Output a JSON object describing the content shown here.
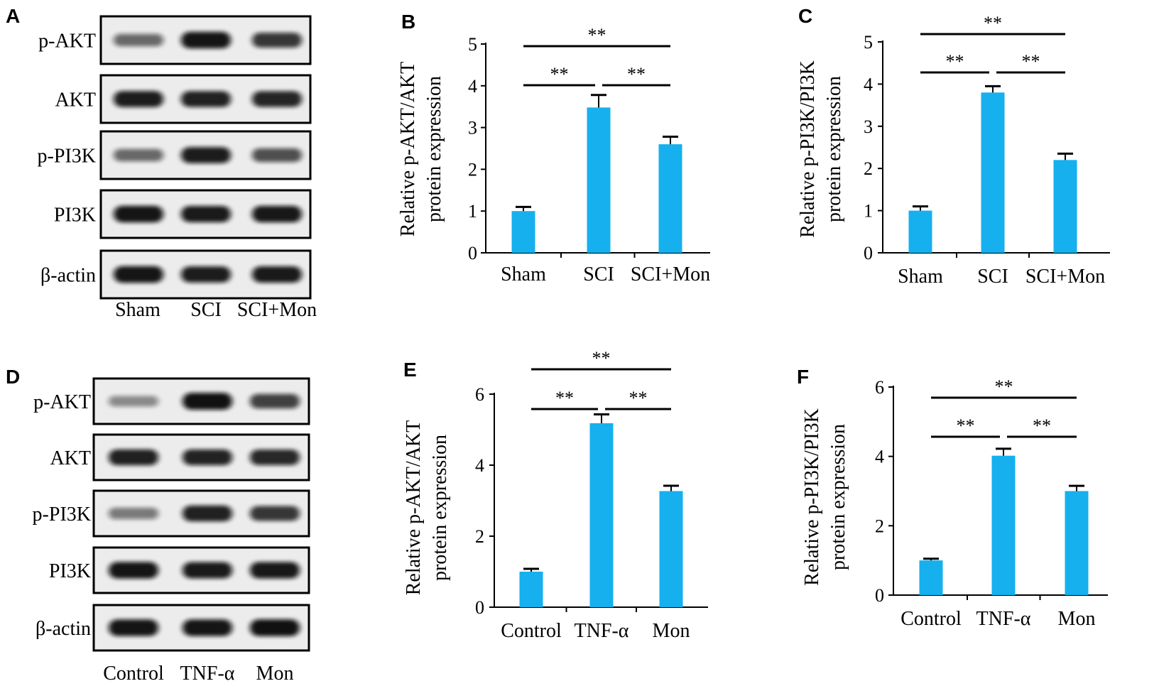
{
  "colors": {
    "bar": "#16b0ee",
    "axis": "#000000",
    "band": "#111111",
    "blot_bg": "#ececec"
  },
  "blots": [
    {
      "panel_letter": "A",
      "rows": [
        {
          "label": "p-AKT",
          "intensity": [
            0.45,
            0.95,
            0.75
          ]
        },
        {
          "label": "AKT",
          "intensity": [
            0.9,
            0.88,
            0.85
          ]
        },
        {
          "label": "p-PI3K",
          "intensity": [
            0.45,
            0.9,
            0.6
          ]
        },
        {
          "label": "PI3K",
          "intensity": [
            0.95,
            0.92,
            0.93
          ]
        },
        {
          "label": "β-actin",
          "intensity": [
            0.95,
            0.9,
            0.92
          ]
        }
      ],
      "lanes": [
        "Sham",
        "SCI",
        "SCI+Mon"
      ]
    },
    {
      "panel_letter": "D",
      "rows": [
        {
          "label": "p-AKT",
          "intensity": [
            0.25,
            0.98,
            0.7
          ]
        },
        {
          "label": "AKT",
          "intensity": [
            0.88,
            0.86,
            0.84
          ]
        },
        {
          "label": "p-PI3K",
          "intensity": [
            0.35,
            0.88,
            0.75
          ]
        },
        {
          "label": "PI3K",
          "intensity": [
            0.95,
            0.92,
            0.93
          ]
        },
        {
          "label": "β-actin",
          "intensity": [
            0.95,
            0.95,
            0.97
          ]
        }
      ],
      "lanes": [
        "Control",
        "TNF-α",
        "Mon"
      ]
    }
  ],
  "chart_data": [
    {
      "panel_letter": "B",
      "type": "bar",
      "categories": [
        "Sham",
        "SCI",
        "SCI+Mon"
      ],
      "values": [
        1.0,
        3.48,
        2.6
      ],
      "errors": [
        0.1,
        0.3,
        0.18
      ],
      "ylabel_line1": "Relative p-AKT/AKT",
      "ylabel_line2": "protein expression",
      "ylim": [
        0,
        5
      ],
      "yticks": [
        0,
        1,
        2,
        3,
        4,
        5
      ],
      "significance": [
        {
          "from": 0,
          "to": 1,
          "label": "**"
        },
        {
          "from": 1,
          "to": 2,
          "label": "**"
        },
        {
          "from": 0,
          "to": 2,
          "label": "**"
        }
      ]
    },
    {
      "panel_letter": "C",
      "type": "bar",
      "categories": [
        "Sham",
        "SCI",
        "SCI+Mon"
      ],
      "values": [
        1.0,
        3.8,
        2.2
      ],
      "errors": [
        0.1,
        0.15,
        0.15
      ],
      "ylabel_line1": "Relative p-PI3K/PI3K",
      "ylabel_line2": "protein expression",
      "ylim": [
        0,
        5
      ],
      "yticks": [
        0,
        1,
        2,
        3,
        4,
        5
      ],
      "significance": [
        {
          "from": 0,
          "to": 1,
          "label": "**"
        },
        {
          "from": 1,
          "to": 2,
          "label": "**"
        },
        {
          "from": 0,
          "to": 2,
          "label": "**"
        }
      ]
    },
    {
      "panel_letter": "E",
      "type": "bar",
      "categories": [
        "Control",
        "TNF-α",
        "Mon"
      ],
      "values": [
        1.0,
        5.18,
        3.27
      ],
      "errors": [
        0.08,
        0.25,
        0.15
      ],
      "ylabel_line1": "Relative p-AKT/AKT",
      "ylabel_line2": "protein expression",
      "ylim": [
        0,
        6
      ],
      "yticks": [
        0,
        2,
        4,
        6
      ],
      "significance": [
        {
          "from": 0,
          "to": 1,
          "label": "**"
        },
        {
          "from": 1,
          "to": 2,
          "label": "**"
        },
        {
          "from": 0,
          "to": 2,
          "label": "**"
        }
      ]
    },
    {
      "panel_letter": "F",
      "type": "bar",
      "categories": [
        "Control",
        "TNF-α",
        "Mon"
      ],
      "values": [
        1.0,
        4.02,
        3.0
      ],
      "errors": [
        0.05,
        0.2,
        0.15
      ],
      "ylabel_line1": "Relative p-PI3K/PI3K",
      "ylabel_line2": "protein expression",
      "ylim": [
        0,
        6
      ],
      "yticks": [
        0,
        2,
        4,
        6
      ],
      "significance": [
        {
          "from": 0,
          "to": 1,
          "label": "**"
        },
        {
          "from": 1,
          "to": 2,
          "label": "**"
        },
        {
          "from": 0,
          "to": 2,
          "label": "**"
        }
      ]
    }
  ]
}
